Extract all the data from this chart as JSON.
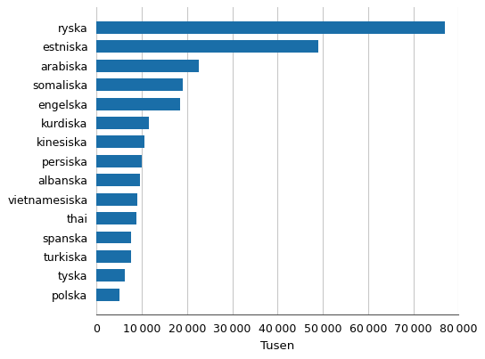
{
  "categories": [
    "polska",
    "tyska",
    "turkiska",
    "spanska",
    "thai",
    "vietnamesiska",
    "albanska",
    "persiska",
    "kinesiska",
    "kurdiska",
    "engelska",
    "somaliska",
    "arabiska",
    "estniska",
    "ryska"
  ],
  "values": [
    5000,
    6200,
    7600,
    7700,
    8800,
    9000,
    9500,
    10000,
    10500,
    11500,
    18500,
    19000,
    22500,
    49000,
    77000
  ],
  "bar_color": "#1a6ea8",
  "xlabel": "Tusen",
  "xlim": [
    0,
    80000
  ],
  "xticks": [
    0,
    10000,
    20000,
    30000,
    40000,
    50000,
    60000,
    70000,
    80000
  ],
  "xtick_labels": [
    "0",
    "10 000",
    "20 000",
    "30 000",
    "40 000",
    "50 000",
    "60 000",
    "70 000",
    "80 000"
  ],
  "grid_color": "#c8c8c8",
  "background_color": "#ffffff",
  "label_fontsize": 9,
  "xlabel_fontsize": 9.5
}
